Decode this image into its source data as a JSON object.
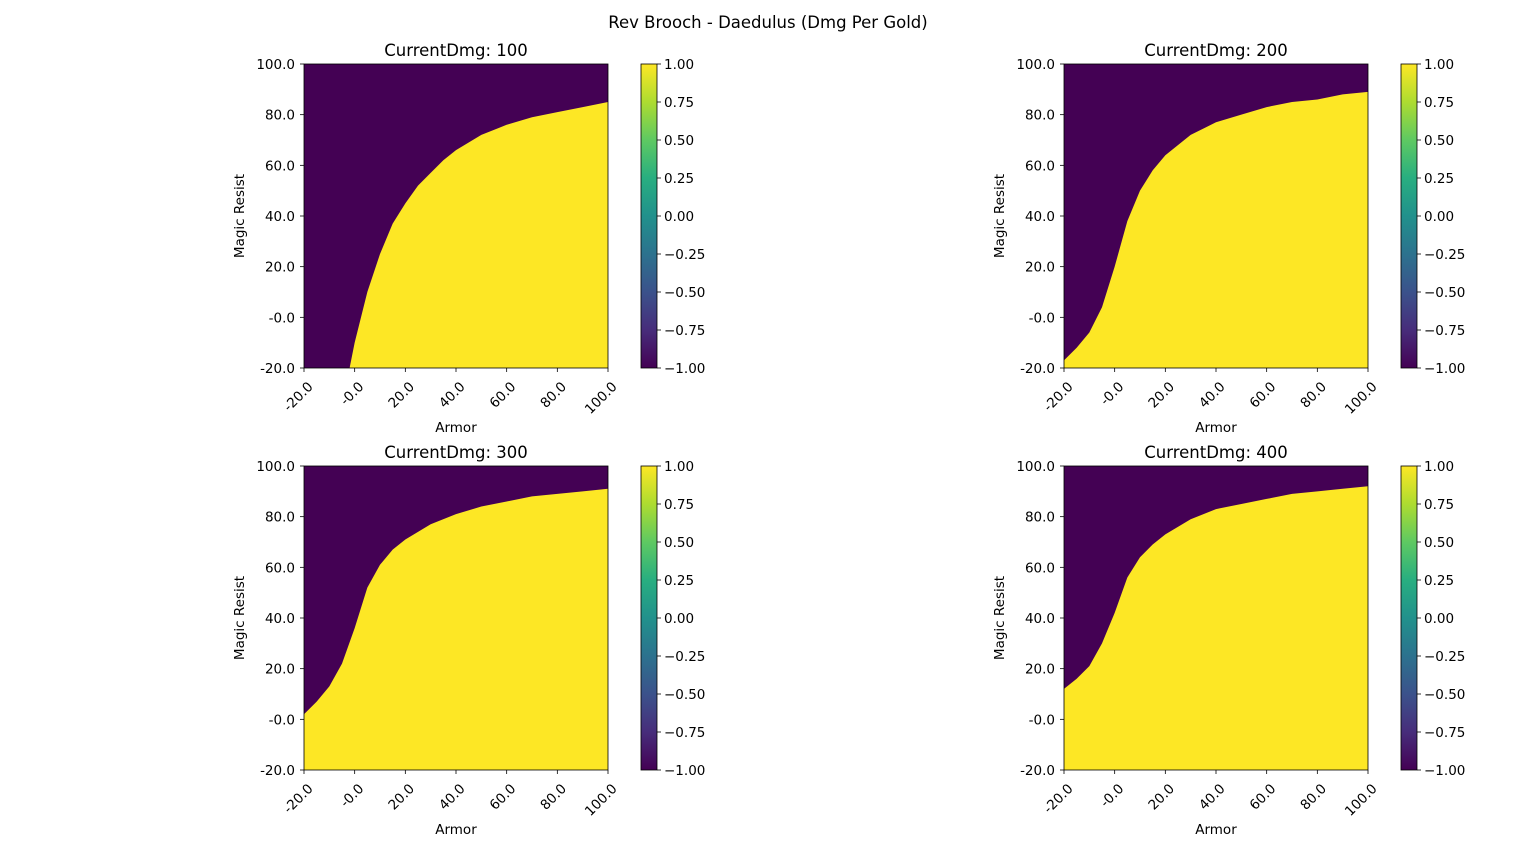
{
  "figure": {
    "suptitle": "Rev Brooch - Daedulus (Dmg Per Gold)"
  },
  "colors": {
    "low": "#440154",
    "high": "#fde725"
  },
  "chart_data": [
    {
      "type": "heatmap",
      "title": "CurrentDmg: 100",
      "xlabel": "Armor",
      "ylabel": "Magic Resist",
      "xlim": [
        -20,
        100
      ],
      "ylim": [
        -20,
        100
      ],
      "x_ticks": [
        "-20.0",
        "-0.0",
        "20.0",
        "40.0",
        "60.0",
        "80.0",
        "100.0"
      ],
      "y_ticks": [
        "-20.0",
        "-0.0",
        "20.0",
        "40.0",
        "60.0",
        "80.0",
        "100.0"
      ],
      "colorbar_range": [
        -1,
        1
      ],
      "colorbar_ticks": [
        "1.00",
        "0.75",
        "0.50",
        "0.25",
        "0.00",
        "−0.25",
        "−0.50",
        "−0.75",
        "−1.00"
      ],
      "boundary": {
        "description": "value is 1.00 below the boundary curve (magic resist lower than boundary), -1.00 above",
        "armor": [
          -2,
          0,
          5,
          10,
          15,
          20,
          25,
          30,
          35,
          40,
          50,
          60,
          70,
          80,
          90,
          100
        ],
        "magic_resist": [
          -20,
          -10,
          10,
          25,
          37,
          45,
          52,
          57,
          62,
          66,
          72,
          76,
          79,
          81,
          83,
          85
        ]
      }
    },
    {
      "type": "heatmap",
      "title": "CurrentDmg: 200",
      "xlabel": "Armor",
      "ylabel": "Magic Resist",
      "xlim": [
        -20,
        100
      ],
      "ylim": [
        -20,
        100
      ],
      "x_ticks": [
        "-20.0",
        "-0.0",
        "20.0",
        "40.0",
        "60.0",
        "80.0",
        "100.0"
      ],
      "y_ticks": [
        "-20.0",
        "-0.0",
        "20.0",
        "40.0",
        "60.0",
        "80.0",
        "100.0"
      ],
      "colorbar_range": [
        -1,
        1
      ],
      "colorbar_ticks": [
        "1.00",
        "0.75",
        "0.50",
        "0.25",
        "0.00",
        "−0.25",
        "−0.50",
        "−0.75",
        "−1.00"
      ],
      "boundary": {
        "description": "value is 1.00 below the boundary curve (magic resist lower than boundary), -1.00 above",
        "armor": [
          -20,
          -15,
          -10,
          -5,
          0,
          5,
          10,
          15,
          20,
          30,
          40,
          50,
          60,
          70,
          80,
          90,
          100
        ],
        "magic_resist": [
          -17,
          -12,
          -6,
          4,
          20,
          38,
          50,
          58,
          64,
          72,
          77,
          80,
          83,
          85,
          86,
          88,
          89
        ]
      }
    },
    {
      "type": "heatmap",
      "title": "CurrentDmg: 300",
      "xlabel": "Armor",
      "ylabel": "Magic Resist",
      "xlim": [
        -20,
        100
      ],
      "ylim": [
        -20,
        100
      ],
      "x_ticks": [
        "-20.0",
        "-0.0",
        "20.0",
        "40.0",
        "60.0",
        "80.0",
        "100.0"
      ],
      "y_ticks": [
        "-20.0",
        "-0.0",
        "20.0",
        "40.0",
        "60.0",
        "80.0",
        "100.0"
      ],
      "colorbar_range": [
        -1,
        1
      ],
      "colorbar_ticks": [
        "1.00",
        "0.75",
        "0.50",
        "0.25",
        "0.00",
        "−0.25",
        "−0.50",
        "−0.75",
        "−1.00"
      ],
      "boundary": {
        "description": "value is 1.00 below the boundary curve (magic resist lower than boundary), -1.00 above",
        "armor": [
          -20,
          -15,
          -10,
          -5,
          0,
          5,
          10,
          15,
          20,
          30,
          40,
          50,
          60,
          70,
          80,
          90,
          100
        ],
        "magic_resist": [
          2,
          7,
          13,
          22,
          36,
          52,
          61,
          67,
          71,
          77,
          81,
          84,
          86,
          88,
          89,
          90,
          91
        ]
      }
    },
    {
      "type": "heatmap",
      "title": "CurrentDmg: 400",
      "xlabel": "Armor",
      "ylabel": "Magic Resist",
      "xlim": [
        -20,
        100
      ],
      "ylim": [
        -20,
        100
      ],
      "x_ticks": [
        "-20.0",
        "-0.0",
        "20.0",
        "40.0",
        "60.0",
        "80.0",
        "100.0"
      ],
      "y_ticks": [
        "-20.0",
        "-0.0",
        "20.0",
        "40.0",
        "60.0",
        "80.0",
        "100.0"
      ],
      "colorbar_range": [
        -1,
        1
      ],
      "colorbar_ticks": [
        "1.00",
        "0.75",
        "0.50",
        "0.25",
        "0.00",
        "−0.25",
        "−0.50",
        "−0.75",
        "−1.00"
      ],
      "boundary": {
        "description": "value is 1.00 below the boundary curve (magic resist lower than boundary), -1.00 above",
        "armor": [
          -20,
          -15,
          -10,
          -5,
          0,
          5,
          10,
          15,
          20,
          30,
          40,
          50,
          60,
          70,
          80,
          90,
          100
        ],
        "magic_resist": [
          12,
          16,
          21,
          30,
          42,
          56,
          64,
          69,
          73,
          79,
          83,
          85,
          87,
          89,
          90,
          91,
          92
        ]
      }
    }
  ]
}
